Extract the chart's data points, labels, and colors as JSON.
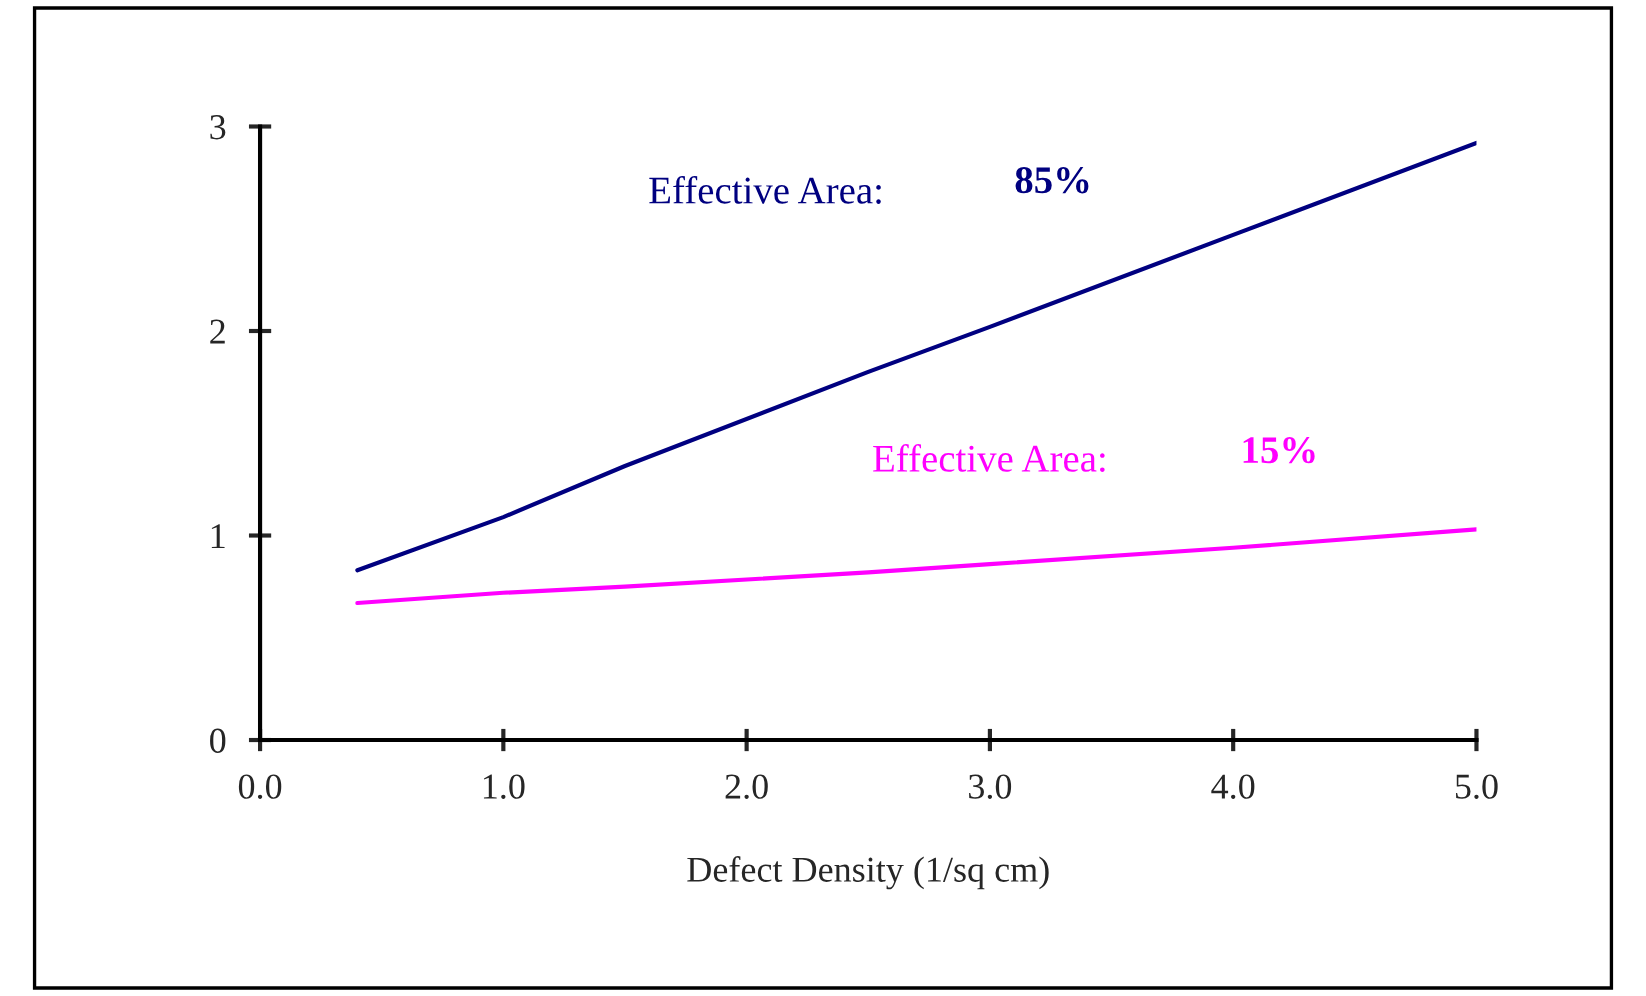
{
  "chart_data": {
    "type": "line",
    "xlabel": "Defect Density (1/sq cm)",
    "series": [
      {
        "color": "#000080",
        "x": [
          0.4,
          1.0,
          1.5,
          2.5,
          3.0,
          4.0,
          5.0
        ],
        "values": [
          0.83,
          1.09,
          1.34,
          1.8,
          2.02,
          2.47,
          2.92
        ]
      },
      {
        "color": "#ff00ff",
        "x": [
          0.4,
          1.0,
          1.5,
          2.5,
          3.0,
          4.0,
          5.0
        ],
        "values": [
          0.67,
          0.72,
          0.75,
          0.82,
          0.86,
          0.94,
          1.03
        ]
      }
    ],
    "annotations": [
      "Effective Area:",
      "85%",
      "Effective Area:",
      "15%"
    ],
    "xlim": [
      0,
      5
    ],
    "ylim": [
      0,
      3
    ],
    "xticks": [
      {
        "value": 0,
        "label": "0.0"
      },
      {
        "value": 1,
        "label": "1.0"
      },
      {
        "value": 2,
        "label": "2.0"
      },
      {
        "value": 3,
        "label": "3.0"
      },
      {
        "value": 4,
        "label": "4.0"
      },
      {
        "value": 5,
        "label": "5.0"
      }
    ],
    "yticks": [
      0,
      1,
      2,
      3
    ],
    "grid": false,
    "legend": false,
    "marker": "none",
    "line_style": "solid"
  }
}
